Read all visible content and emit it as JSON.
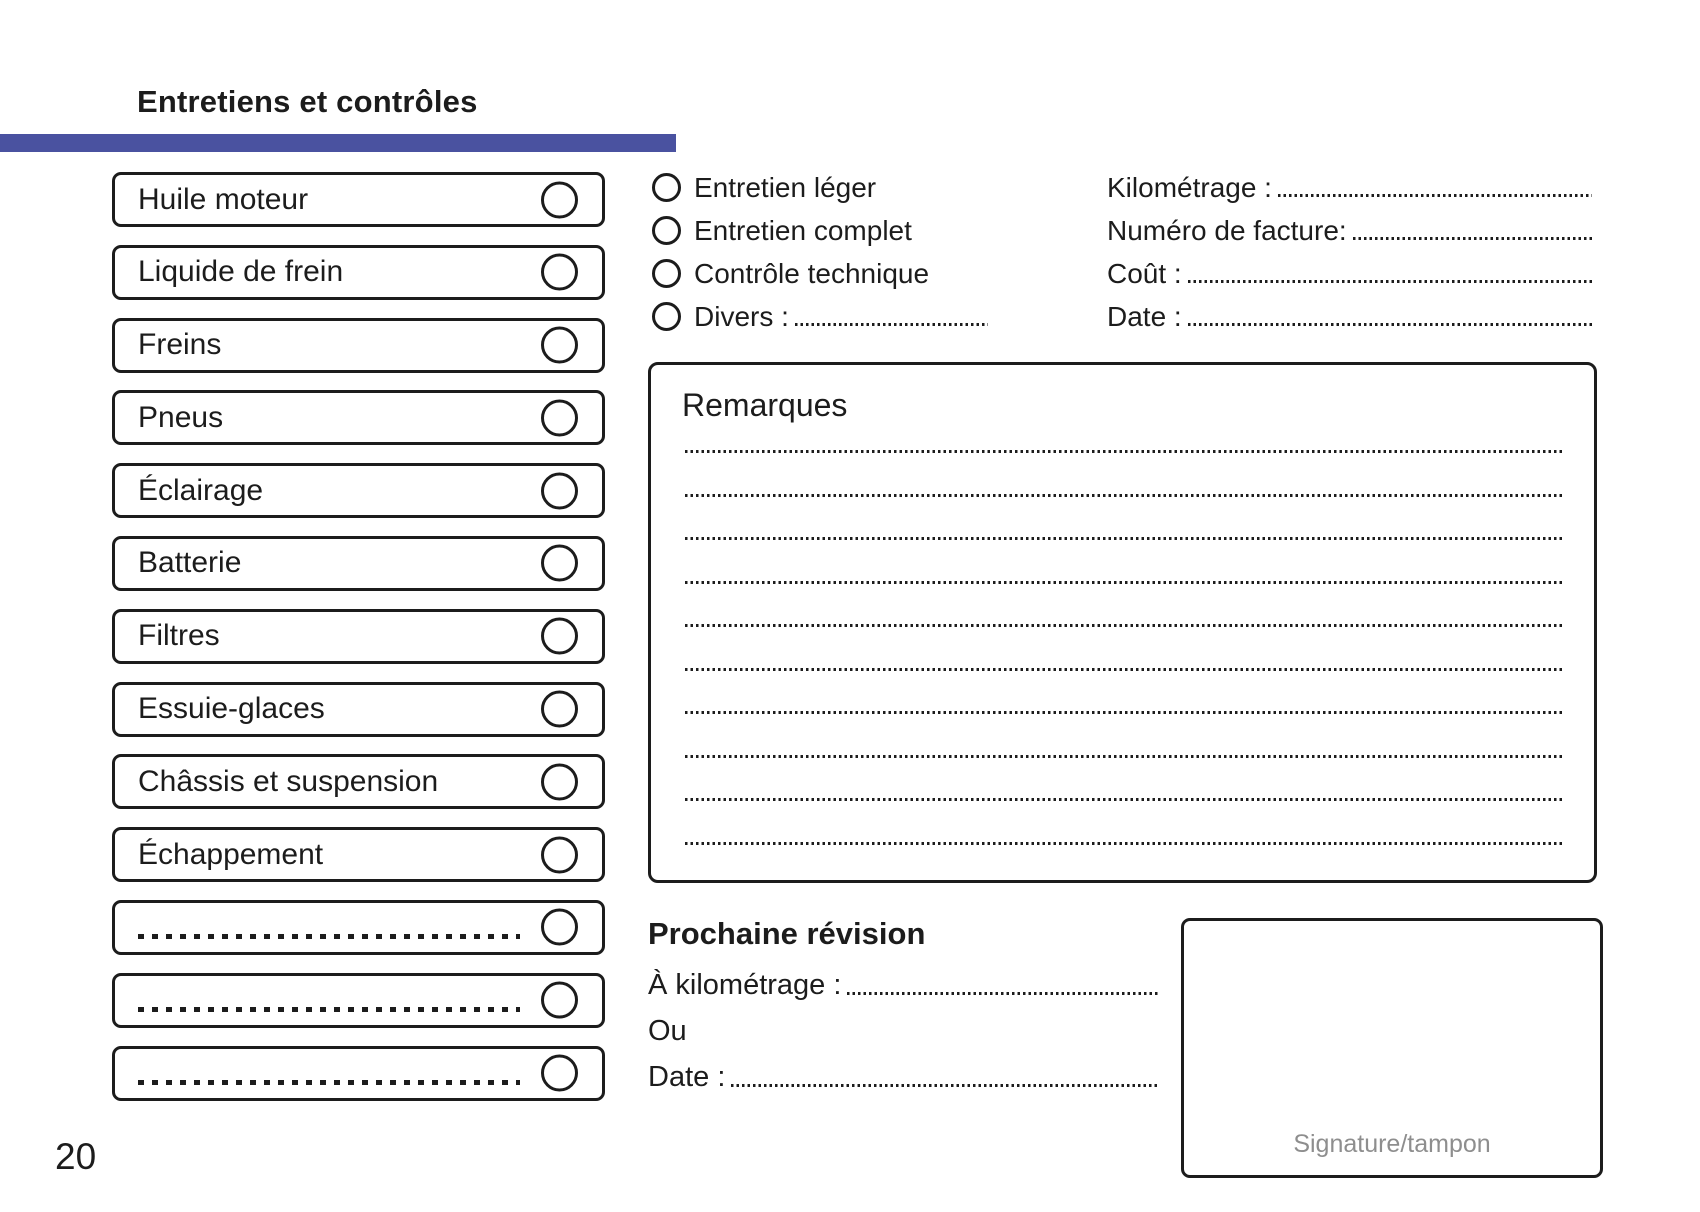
{
  "page": {
    "title": "Entretiens et contrôles",
    "page_number": "20",
    "accent_color": "#4a52a0"
  },
  "checklist": {
    "items": [
      {
        "label": "Huile moteur",
        "dotted": false
      },
      {
        "label": "Liquide de frein",
        "dotted": false
      },
      {
        "label": "Freins",
        "dotted": false
      },
      {
        "label": "Pneus",
        "dotted": false
      },
      {
        "label": "Éclairage",
        "dotted": false
      },
      {
        "label": "Batterie",
        "dotted": false
      },
      {
        "label": "Filtres",
        "dotted": false
      },
      {
        "label": "Essuie-glaces",
        "dotted": false
      },
      {
        "label": "Châssis et suspension",
        "dotted": false
      },
      {
        "label": "Échappement",
        "dotted": false
      },
      {
        "label": "",
        "dotted": true
      },
      {
        "label": "",
        "dotted": true
      },
      {
        "label": "",
        "dotted": true
      }
    ]
  },
  "service_type": {
    "options": [
      {
        "label": "Entretien léger",
        "has_dots": false
      },
      {
        "label": "Entretien complet",
        "has_dots": false
      },
      {
        "label": "Contrôle technique",
        "has_dots": false
      },
      {
        "label": "Divers :",
        "has_dots": true
      }
    ]
  },
  "invoice_fields": {
    "rows": [
      {
        "label": "Kilométrage :"
      },
      {
        "label": "Numéro de facture:"
      },
      {
        "label": "Coût :"
      },
      {
        "label": "Date :"
      }
    ]
  },
  "remarks": {
    "title": "Remarques",
    "line_count": 10
  },
  "next_service": {
    "title": "Prochaine révision",
    "rows": [
      {
        "label": "À kilométrage :",
        "has_dots": true
      },
      {
        "label": "Ou",
        "has_dots": false
      },
      {
        "label": "Date :",
        "has_dots": true
      }
    ]
  },
  "signature": {
    "label": "Signature/tampon"
  }
}
